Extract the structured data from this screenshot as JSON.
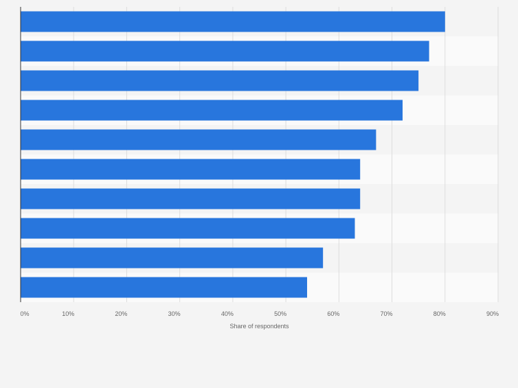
{
  "chart_data": {
    "type": "bar",
    "orientation": "horizontal",
    "categories": [
      "",
      "",
      "",
      "",
      "",
      "",
      "",
      "",
      "",
      ""
    ],
    "values": [
      80,
      77,
      75,
      72,
      67,
      64,
      64,
      63,
      57,
      54
    ],
    "xlabel": "Share of respondents",
    "xlim": [
      0,
      90
    ],
    "xticks": [
      "0%",
      "10%",
      "20%",
      "30%",
      "40%",
      "50%",
      "60%",
      "70%",
      "80%",
      "90%"
    ],
    "grid": true,
    "colors": {
      "bar": "#2876dd",
      "background": "#f4f4f4",
      "band_light": "#fafafa",
      "grid": "#dddddd",
      "axis": "#333333",
      "tick_text": "#666666"
    }
  }
}
